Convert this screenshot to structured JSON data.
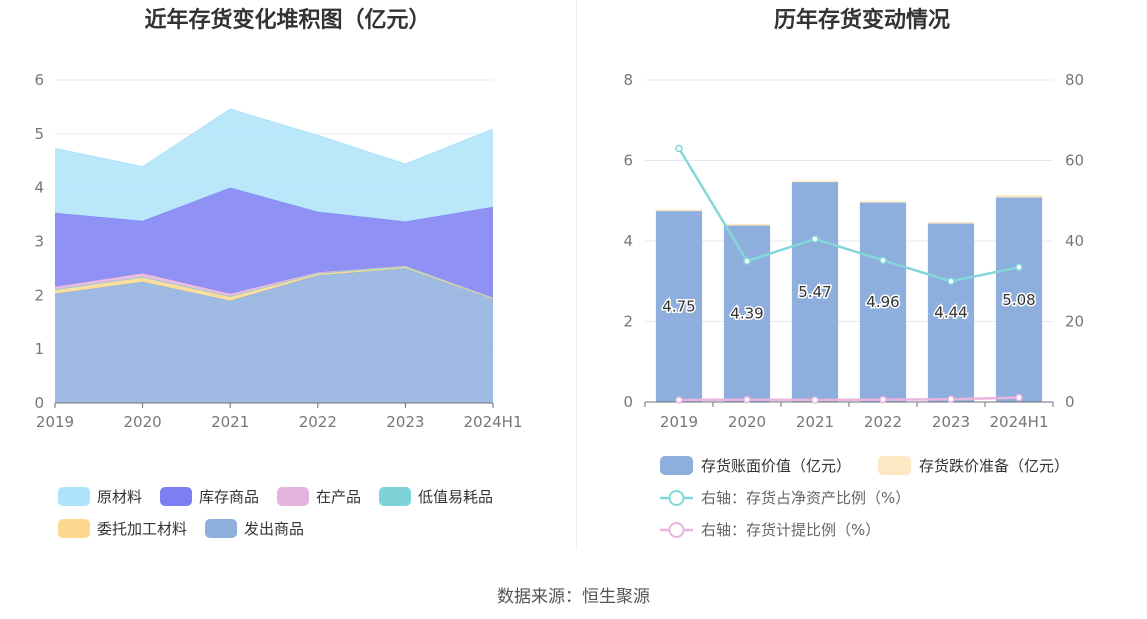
{
  "left_title": "近年存货变化堆积图（亿元）",
  "right_title": "历年存货变动情况",
  "source": "数据来源：恒生聚源",
  "chart_data": [
    {
      "type": "area",
      "stacked": true,
      "title": "近年存货变化堆积图（亿元）",
      "categories": [
        "2019",
        "2020",
        "2021",
        "2022",
        "2023",
        "2024H1"
      ],
      "ylim": [
        0,
        6
      ],
      "yticks": [
        0,
        1,
        2,
        3,
        4,
        5,
        6
      ],
      "grid": true,
      "legend_position": "bottom",
      "series": [
        {
          "name": "发出商品",
          "color": "#8eaede",
          "values": [
            2.03,
            2.25,
            1.9,
            2.37,
            2.5,
            1.93
          ]
        },
        {
          "name": "委托加工材料",
          "color": "#fcd98e",
          "values": [
            0.07,
            0.08,
            0.07,
            0.03,
            0.02,
            0.01
          ]
        },
        {
          "name": "低值易耗品",
          "color": "#7dd3d8",
          "values": [
            0.01,
            0.01,
            0.01,
            0.01,
            0.03,
            0.02
          ]
        },
        {
          "name": "在产品",
          "color": "#e5b3dc",
          "values": [
            0.05,
            0.07,
            0.05,
            0.02,
            0.0,
            0.0
          ]
        },
        {
          "name": "库存商品",
          "color": "#7b7ff2",
          "values": [
            1.37,
            0.97,
            1.97,
            1.12,
            0.82,
            1.68
          ]
        },
        {
          "name": "原材料",
          "color": "#aee3f9",
          "values": [
            1.2,
            1.01,
            1.46,
            1.42,
            1.07,
            1.45
          ]
        }
      ],
      "legend_order": [
        "原材料",
        "库存商品",
        "在产品",
        "低值易耗品",
        "委托加工材料",
        "发出商品"
      ]
    },
    {
      "type": "bar",
      "stacked": true,
      "title": "历年存货变动情况",
      "categories": [
        "2019",
        "2020",
        "2021",
        "2022",
        "2023",
        "2024H1"
      ],
      "ylim": [
        0,
        8
      ],
      "yticks": [
        0,
        2,
        4,
        6,
        8
      ],
      "y2lim": [
        0,
        80
      ],
      "y2ticks": [
        0,
        20,
        40,
        60,
        80
      ],
      "grid": true,
      "legend_position": "bottom",
      "series": [
        {
          "name": "存货账面价值（亿元）",
          "kind": "bar",
          "color": "#8eaede",
          "values": [
            4.75,
            4.39,
            5.47,
            4.96,
            4.44,
            5.08
          ],
          "labels": [
            "4.75",
            "4.39",
            "5.47",
            "4.96",
            "4.44",
            "5.08"
          ]
        },
        {
          "name": "存货跌价准备（亿元）",
          "kind": "bar",
          "color": "#fde8c4",
          "values": [
            0.03,
            0.03,
            0.03,
            0.03,
            0.03,
            0.06
          ]
        },
        {
          "name": "右轴：存货占净资产比例（%）",
          "kind": "line",
          "axis": "right",
          "color": "#84d7d9",
          "values": [
            63,
            35,
            40.5,
            35.2,
            30,
            33.5
          ]
        },
        {
          "name": "右轴：存货计提比例（%）",
          "kind": "line",
          "axis": "right",
          "color": "#e9b5df",
          "values": [
            0.5,
            0.6,
            0.5,
            0.6,
            0.7,
            1.1
          ]
        }
      ]
    }
  ]
}
